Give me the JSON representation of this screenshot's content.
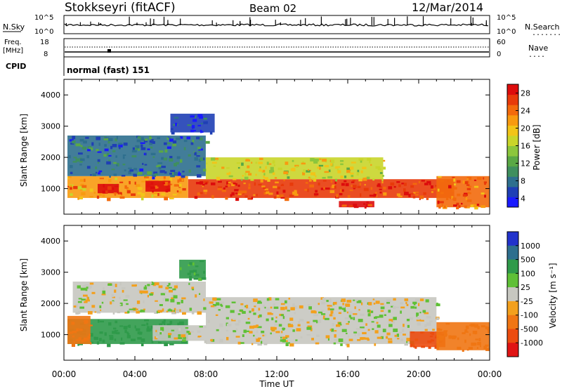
{
  "header": {
    "station": "Stokkseyri (fitACF)",
    "beam": "Beam 02",
    "date": "12/Mar/2014"
  },
  "summary_panels": {
    "nsky": {
      "label": "N.Sky",
      "ticks": [
        "10^5",
        "10^0"
      ]
    },
    "nsearch": {
      "label": "N.Search",
      "ticks": [
        "10^5",
        "10^0"
      ]
    },
    "freq": {
      "label_line1": "Freq.",
      "label_line2": "[MHz]",
      "ticks": [
        "18",
        "8"
      ]
    },
    "nave": {
      "label": "Nave",
      "ticks": [
        "60",
        "0"
      ]
    },
    "cpid": {
      "label": "CPID",
      "mode": "normal (fast) 151"
    }
  },
  "chart_data": [
    {
      "type": "heatmap",
      "title": "",
      "quantity": "Power",
      "xlabel": "Time UT",
      "ylabel": "Slant Range [km]",
      "colorbar_label": "Power [dB]",
      "x_range_hours": [
        0,
        24
      ],
      "ylim_km": [
        180,
        4500
      ],
      "x_ticks": [
        "00:00",
        "04:00",
        "08:00",
        "12:00",
        "16:00",
        "20:00",
        "00:00"
      ],
      "y_ticks": [
        1000,
        2000,
        3000,
        4000
      ],
      "colorbar_ticks": [
        4,
        8,
        12,
        16,
        20,
        24,
        28
      ],
      "colorbar_colors": [
        "#1a1aff",
        "#1f3fb5",
        "#2e6f8e",
        "#3f8f5e",
        "#5aa845",
        "#8cc63c",
        "#c9d52a",
        "#f2c418",
        "#f89a10",
        "#f36a0c",
        "#e83a0a",
        "#dd0c0c"
      ],
      "regions": [
        {
          "t": [
            0.2,
            7.0
          ],
          "r_km": [
            700,
            1400
          ],
          "level_db": 22
        },
        {
          "t": [
            1.9,
            3.1
          ],
          "r_km": [
            850,
            1150
          ],
          "level_db": 28
        },
        {
          "t": [
            4.6,
            6.0
          ],
          "r_km": [
            900,
            1250
          ],
          "level_db": 28
        },
        {
          "t": [
            7.0,
            22.0
          ],
          "r_km": [
            700,
            1300
          ],
          "level_db": 26
        },
        {
          "t": [
            8.0,
            18.0
          ],
          "r_km": [
            1300,
            2000
          ],
          "level_db": 18
        },
        {
          "t": [
            0.2,
            8.0
          ],
          "r_km": [
            1400,
            2700
          ],
          "level_db": 8
        },
        {
          "t": [
            6.0,
            8.5
          ],
          "r_km": [
            2800,
            3400
          ],
          "level_db": 6
        },
        {
          "t": [
            15.5,
            17.5
          ],
          "r_km": [
            400,
            600
          ],
          "level_db": 28
        },
        {
          "t": [
            21.0,
            24.0
          ],
          "r_km": [
            400,
            1400
          ],
          "level_db": 24
        }
      ]
    },
    {
      "type": "heatmap",
      "title": "",
      "quantity": "Velocity",
      "xlabel": "Time UT",
      "ylabel": "Slant Range [km]",
      "colorbar_label": "Velocity [m s⁻¹]",
      "x_range_hours": [
        0,
        24
      ],
      "ylim_km": [
        180,
        4500
      ],
      "x_ticks": [
        "00:00",
        "04:00",
        "08:00",
        "12:00",
        "16:00",
        "20:00",
        "00:00"
      ],
      "y_ticks": [
        1000,
        2000,
        3000,
        4000
      ],
      "colorbar_ticks": [
        "1000",
        "500",
        "100",
        "25",
        "-25",
        "-100",
        "-500",
        "-1000"
      ],
      "colorbar_colors": [
        "#2233cc",
        "#2e6f8e",
        "#2f9a4a",
        "#5fc036",
        "#c7c7c0",
        "#f3a01d",
        "#f07613",
        "#ec4c0f",
        "#e01414"
      ],
      "regions": [
        {
          "t": [
            0.2,
            7.0
          ],
          "r_km": [
            700,
            1500
          ],
          "velocity_ms": 300
        },
        {
          "t": [
            0.2,
            1.5
          ],
          "r_km": [
            700,
            1600
          ],
          "velocity_ms": -400
        },
        {
          "t": [
            5.0,
            8.0
          ],
          "r_km": [
            800,
            1300
          ],
          "velocity_ms": 0
        },
        {
          "t": [
            8.0,
            21.0
          ],
          "r_km": [
            700,
            2200
          ],
          "velocity_ms": 0
        },
        {
          "t": [
            0.5,
            8.0
          ],
          "r_km": [
            1700,
            2700
          ],
          "velocity_ms": 0
        },
        {
          "t": [
            6.5,
            8.0
          ],
          "r_km": [
            2800,
            3400
          ],
          "velocity_ms": 150
        },
        {
          "t": [
            19.5,
            21.5
          ],
          "r_km": [
            600,
            1100
          ],
          "velocity_ms": -800
        },
        {
          "t": [
            21.0,
            24.0
          ],
          "r_km": [
            500,
            1400
          ],
          "velocity_ms": -300
        }
      ]
    }
  ],
  "status": {
    "nsearch_dots": "........",
    "nave_dots": "...."
  }
}
